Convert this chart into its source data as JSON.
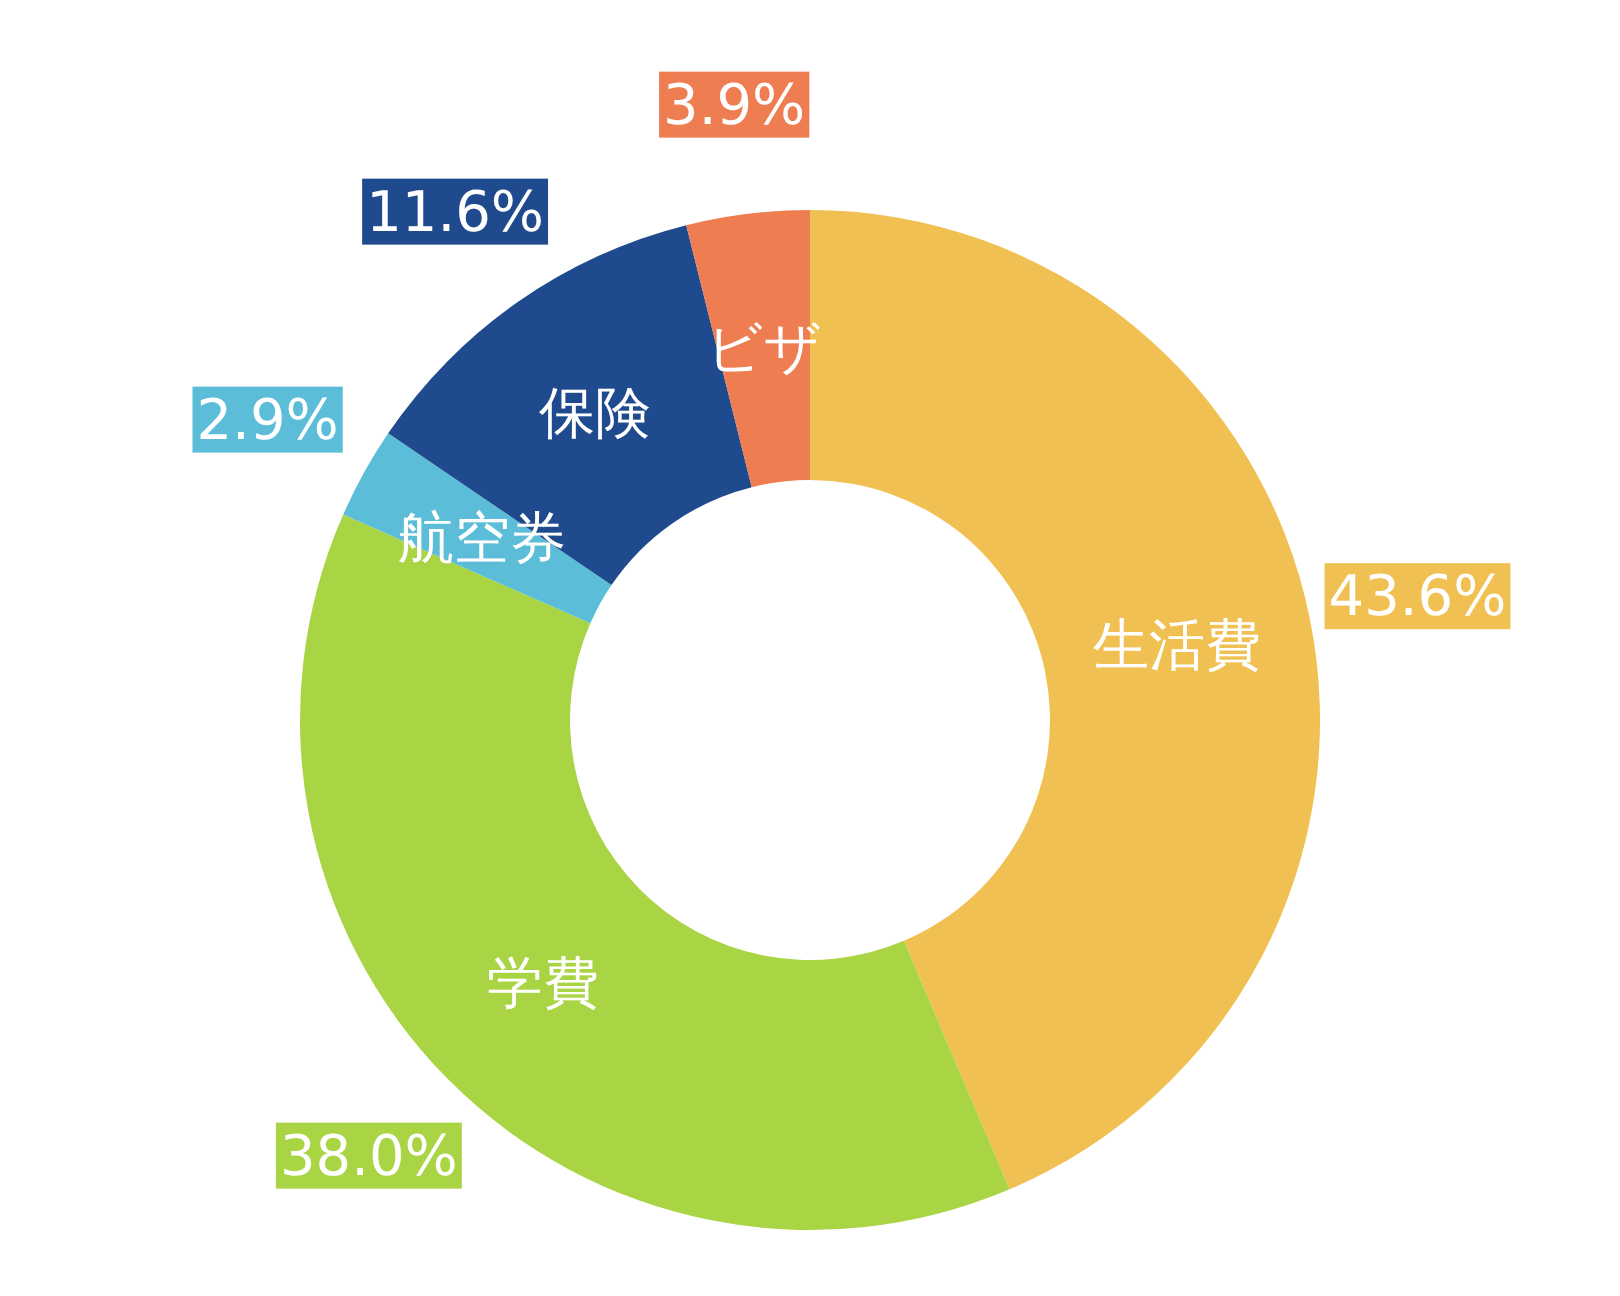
{
  "chart_data": {
    "type": "donut",
    "categories": [
      "生活費",
      "学費",
      "航空券",
      "保険",
      "ビザ"
    ],
    "values": [
      43.6,
      38.0,
      2.9,
      11.6,
      3.9
    ],
    "colors": [
      "#f0c152",
      "#a9d444",
      "#5bbdd7",
      "#1f4b8e",
      "#ee7d52"
    ],
    "value_labels": [
      "43.6%",
      "38.0%",
      "2.9%",
      "11.6%",
      "3.9%"
    ],
    "legend": false
  }
}
